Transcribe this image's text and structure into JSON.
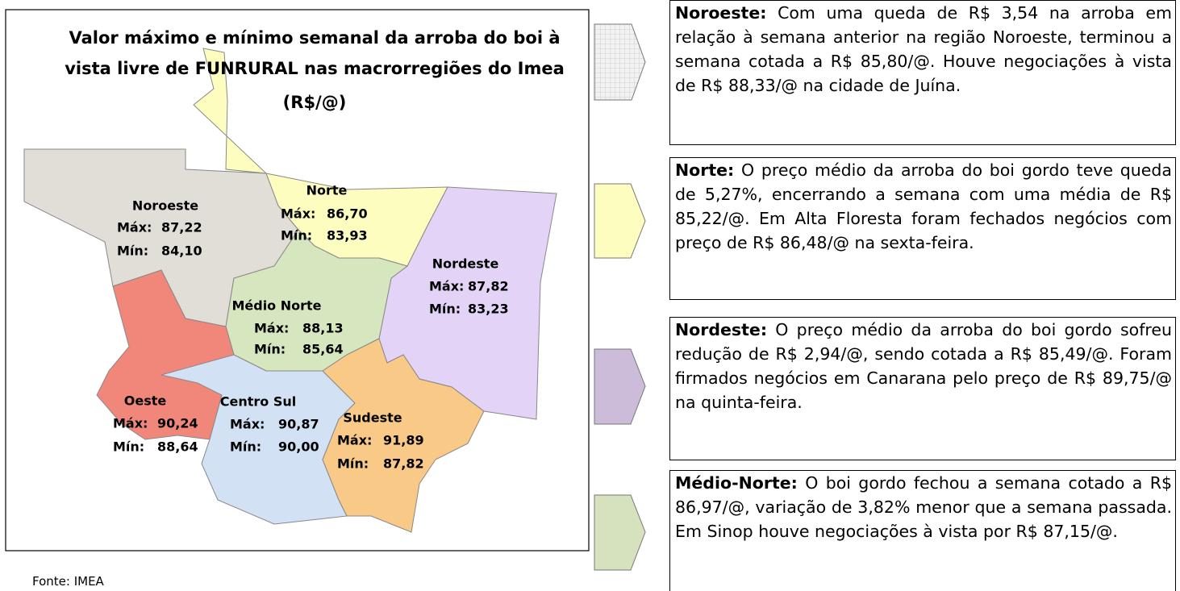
{
  "map": {
    "title_lines": [
      "Valor máximo e mínimo semanal da arroba do boi à",
      "vista livre de FUNRURAL nas macrorregiões do Imea",
      "(R$/@)"
    ],
    "regions": [
      {
        "name": "Noroeste",
        "max_label": "Máx:",
        "max": "87,22",
        "min_label": "Mín:",
        "min": "84,10"
      },
      {
        "name": "Norte",
        "max_label": "Máx:",
        "max": "86,70",
        "min_label": "Mín:",
        "min": "83,93"
      },
      {
        "name": "Nordeste",
        "max_label": "Máx:",
        "max": "87,82",
        "min_label": "Mín:",
        "min": "83,23"
      },
      {
        "name": "Médio Norte",
        "max_label": "Máx:",
        "max": "88,13",
        "min_label": "Mín:",
        "min": "85,64"
      },
      {
        "name": "Oeste",
        "max_label": "Máx:",
        "max": "90,24",
        "min_label": "Mín:",
        "min": "88,64"
      },
      {
        "name": "Centro Sul",
        "max_label": "Máx:",
        "max": "90,87",
        "min_label": "Mín:",
        "min": "90,00"
      },
      {
        "name": "Sudeste",
        "max_label": "Máx:",
        "max": "91,89",
        "min_label": "Mín:",
        "min": "87,82"
      }
    ],
    "source": "Fonte: IMEA"
  },
  "notes": [
    {
      "region": "Noroeste:",
      "text": "Com uma queda de R$ 3,54 na arroba em relação à semana anterior na região Noroeste, terminou a semana cotada a R$ 85,80/@. Houve negociações à vista de R$ 88,33/@ na cidade de Juína."
    },
    {
      "region": "Norte:",
      "text": "O preço médio da arroba do boi gordo teve queda de 5,27%, encerrando a semana com uma média de R$ 85,22/@. Em Alta Floresta foram fechados negócios com preço de R$ 86,48/@ na sexta-feira."
    },
    {
      "region": "Nordeste:",
      "text": "O preço médio da arroba do boi gordo sofreu redução de R$ 2,94/@, sendo cotada a R$ 85,49/@. Foram firmados negócios em Canarana pelo preço de R$ 89,75/@ na quinta-feira."
    },
    {
      "region": "Médio-Norte:",
      "text": "O boi gordo fechou a semana cotado a R$ 86,97/@, variação de 3,82% menor que a semana passada. Em Sinop houve negociações à vista por R$ 87,15/@."
    }
  ]
}
